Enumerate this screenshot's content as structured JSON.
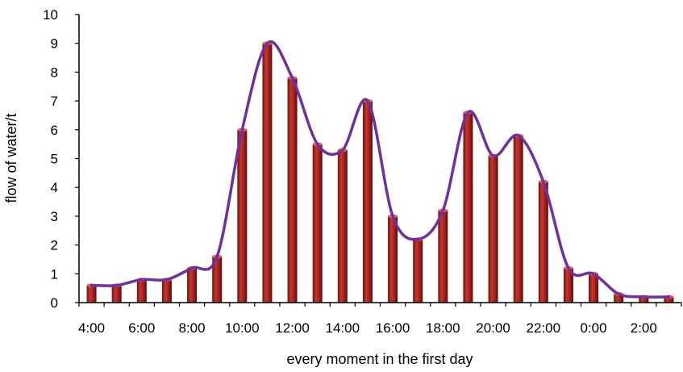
{
  "chart_data": {
    "type": "bar",
    "title": "",
    "xlabel": "every moment in the first day",
    "ylabel": "flow of water/t",
    "ylim": [
      0,
      10
    ],
    "yticks": [
      "0",
      "1",
      "2",
      "3",
      "4",
      "5",
      "6",
      "7",
      "8",
      "9",
      "10"
    ],
    "xtick_labels": [
      "4:00",
      "6:00",
      "8:00",
      "10:00",
      "12:00",
      "14:00",
      "16:00",
      "18:00",
      "20:00",
      "22:00",
      "0:00",
      "2:00"
    ],
    "categories": [
      "4:00",
      "5:00",
      "6:00",
      "7:00",
      "8:00",
      "9:00",
      "10:00",
      "11:00",
      "12:00",
      "13:00",
      "14:00",
      "15:00",
      "16:00",
      "17:00",
      "18:00",
      "19:00",
      "20:00",
      "21:00",
      "22:00",
      "23:00",
      "0:00",
      "1:00",
      "2:00",
      "3:00"
    ],
    "values": [
      0.6,
      0.6,
      0.8,
      0.8,
      1.2,
      1.6,
      6.0,
      9.0,
      7.8,
      5.5,
      5.3,
      7.0,
      3.0,
      2.2,
      3.2,
      6.6,
      5.1,
      5.8,
      4.2,
      1.2,
      1.0,
      0.3,
      0.2,
      0.2
    ],
    "grid": false,
    "legend": "none",
    "colors": {
      "bar": "#b22222",
      "bar_dark": "#6e1212",
      "curve": "#7030a0"
    }
  }
}
